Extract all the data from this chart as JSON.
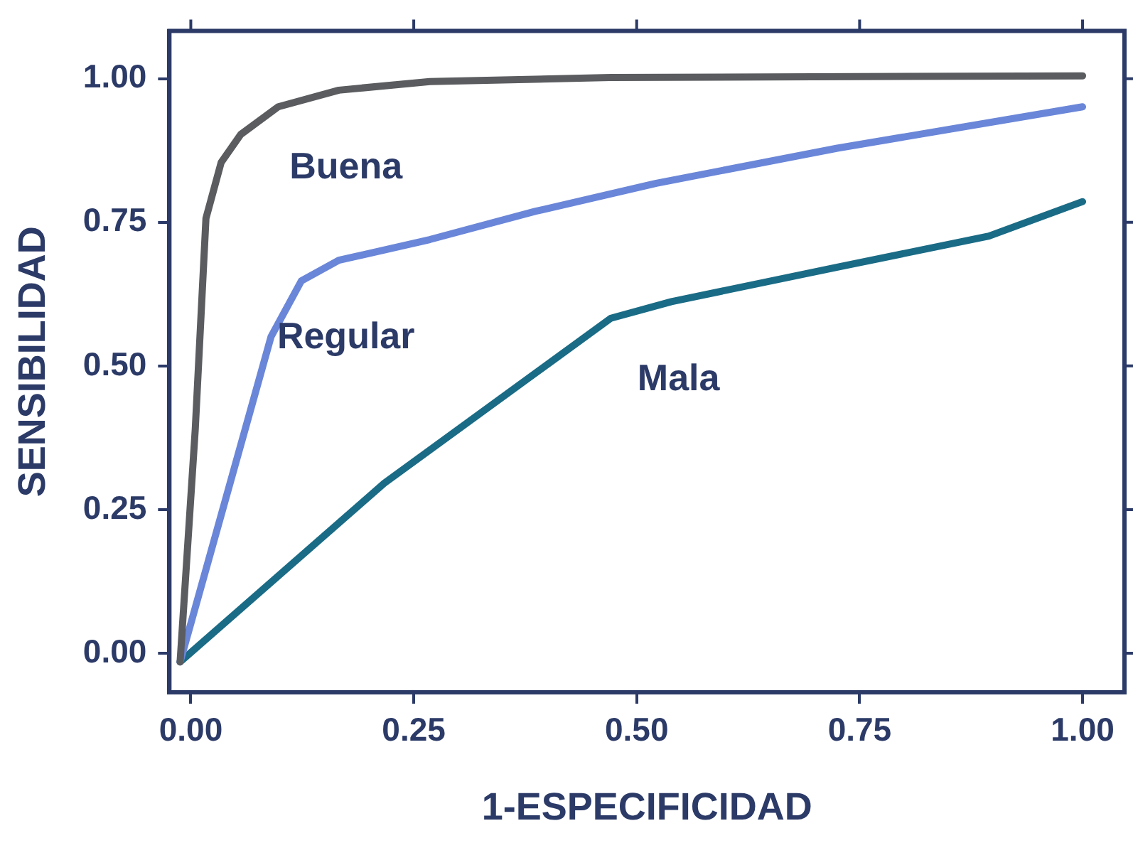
{
  "chart_data": {
    "type": "line",
    "xlabel": "1-ESPECIFICIDAD",
    "ylabel": "SENSIBILIDAD",
    "xlim": [
      -0.024,
      1.047
    ],
    "ylim": [
      -0.068,
      1.083
    ],
    "xticks": [
      {
        "value": 0,
        "label": "0.00"
      },
      {
        "value": 0.25,
        "label": "0.25"
      },
      {
        "value": 0.5,
        "label": "0.50"
      },
      {
        "value": 0.75,
        "label": "0.75"
      },
      {
        "value": 1,
        "label": "1.00"
      }
    ],
    "yticks": [
      {
        "value": 0,
        "label": "0.00"
      },
      {
        "value": 0.25,
        "label": "0.25"
      },
      {
        "value": 0.5,
        "label": "0.50"
      },
      {
        "value": 0.75,
        "label": "0.75"
      },
      {
        "value": 1,
        "label": "1.00"
      }
    ],
    "grid": false,
    "legend": false,
    "marker": "none",
    "line_style": "solid",
    "series": [
      {
        "name": "Buena",
        "color": "#5a5c5f",
        "x": [
          -0.012,
          0.005,
          0.017,
          0.034,
          0.056,
          0.098,
          0.166,
          0.268,
          0.471,
          1.0
        ],
        "values": [
          -0.015,
          0.39,
          0.757,
          0.854,
          0.903,
          0.951,
          0.98,
          0.995,
          1.002,
          1.005
        ]
      },
      {
        "name": "Regular",
        "color": "#6a86d8",
        "x": [
          -0.012,
          0.09,
          0.124,
          0.166,
          0.268,
          0.386,
          0.522,
          0.725,
          1.0
        ],
        "values": [
          -0.015,
          0.551,
          0.648,
          0.684,
          0.72,
          0.769,
          0.818,
          0.879,
          0.951
        ]
      },
      {
        "name": "Mala",
        "color": "#1a6b85",
        "x": [
          -0.012,
          0.217,
          0.471,
          0.539,
          0.725,
          0.895,
          1.0
        ],
        "values": [
          -0.015,
          0.296,
          0.583,
          0.612,
          0.672,
          0.726,
          0.786
        ]
      }
    ]
  }
}
